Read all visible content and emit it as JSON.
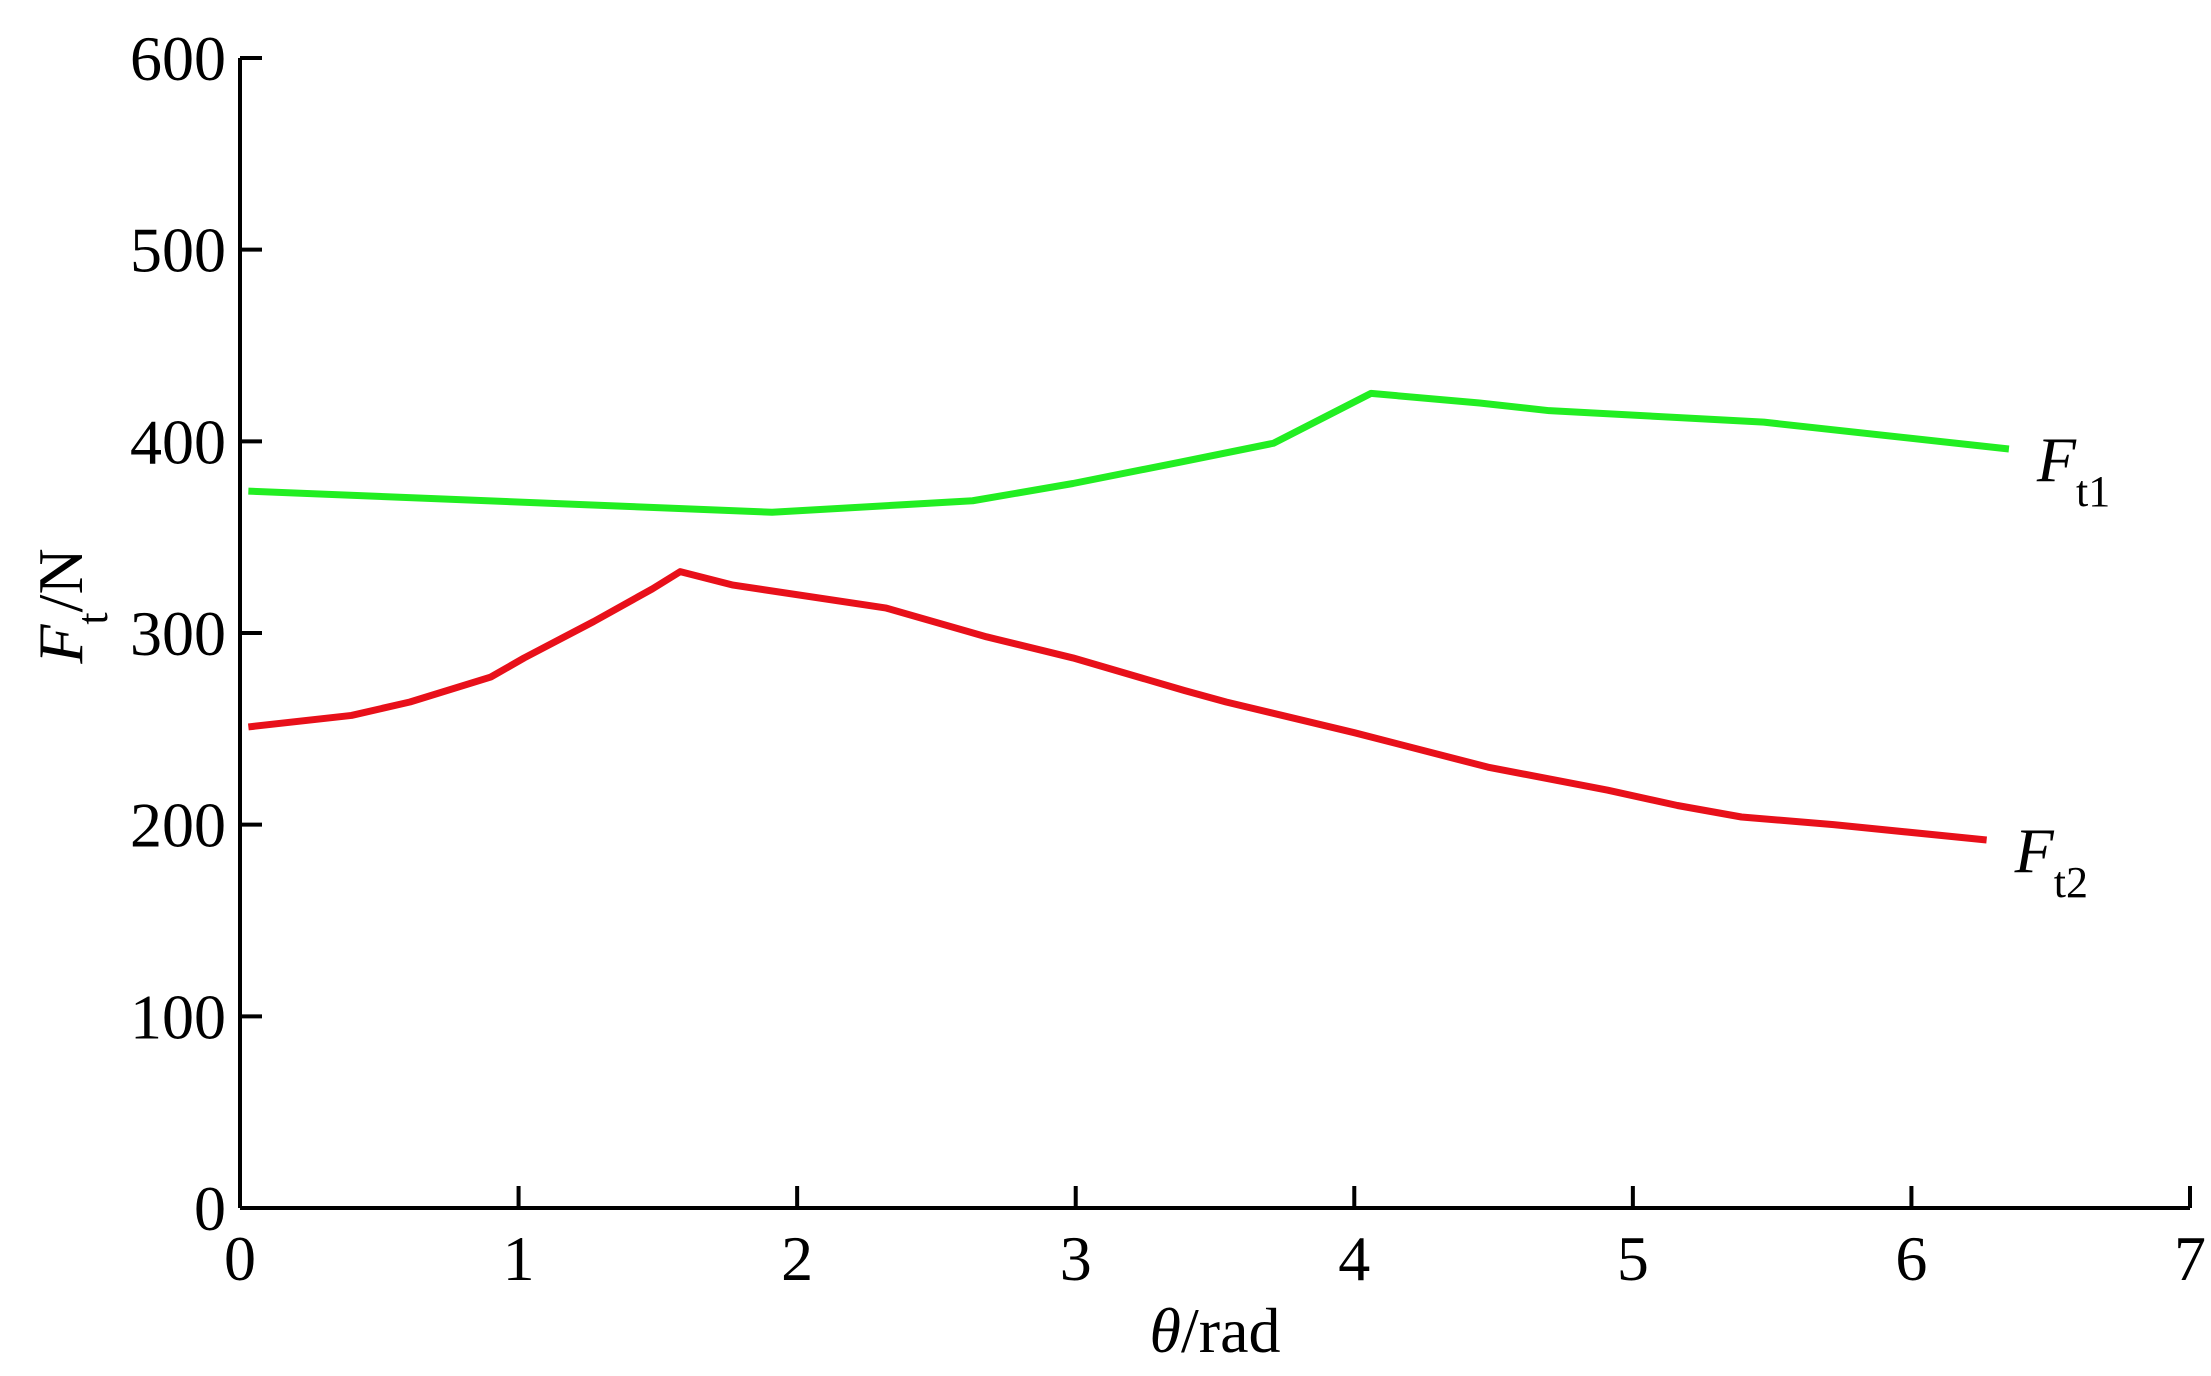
{
  "chart_data": {
    "type": "line",
    "xlabel": [
      "θ",
      "/rad"
    ],
    "ylabel": [
      "F",
      "t",
      "/N"
    ],
    "xlim": [
      0,
      7
    ],
    "xticks": [
      0,
      1,
      2,
      3,
      4,
      5,
      6,
      7
    ],
    "ylim": [
      0,
      600
    ],
    "yticks": [
      0,
      100,
      200,
      300,
      400,
      500,
      600
    ],
    "series": [
      {
        "name": [
          "F",
          "t1"
        ],
        "color": "#22ee22",
        "x": [
          0.03,
          1.91,
          2.63,
          2.99,
          3.37,
          3.71,
          4.06,
          4.45,
          4.7,
          5.47,
          6.35
        ],
        "values": [
          374,
          363,
          369,
          378,
          389,
          399,
          425,
          420,
          416,
          410,
          396
        ]
      },
      {
        "name": [
          "F",
          "t2"
        ],
        "color": "#e8101a",
        "x": [
          0.03,
          0.4,
          0.61,
          0.9,
          1.02,
          1.27,
          1.48,
          1.58,
          1.77,
          2.32,
          2.68,
          2.99,
          3.39,
          3.54,
          4.0,
          4.48,
          4.91,
          5.16,
          5.39,
          5.72,
          6.27
        ],
        "values": [
          251,
          257,
          264,
          277,
          287,
          306,
          323,
          332,
          325,
          313,
          298,
          287,
          270,
          264,
          248,
          230,
          218,
          210,
          204,
          200,
          192
        ]
      }
    ]
  }
}
